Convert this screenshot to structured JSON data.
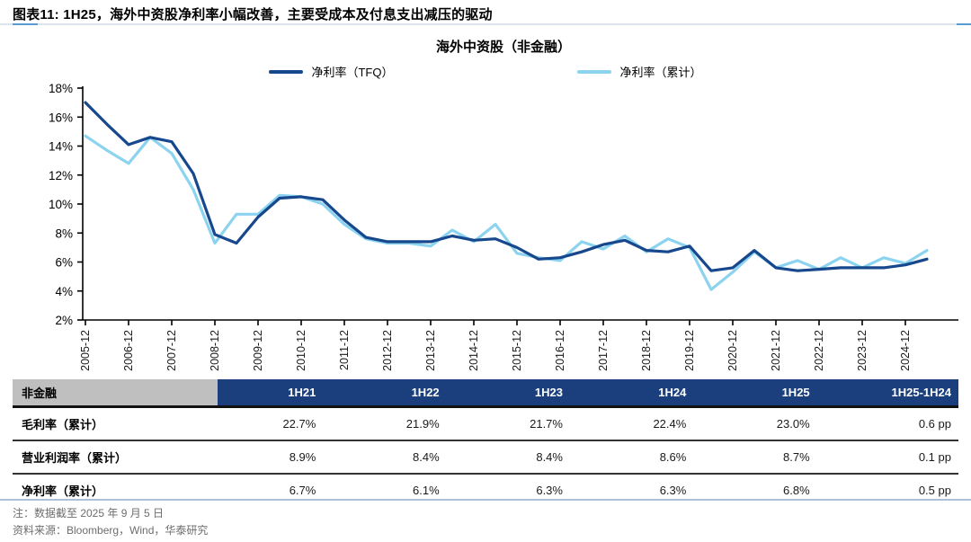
{
  "header": {
    "title": "图表11:  1H25，海外中资股净利率小幅改善，主要受成本及付息支出减压的驱动"
  },
  "colors": {
    "tfq_line": "#17478c",
    "cumulative_line": "#8cd3f0",
    "table_header_bg": "#1b3f7c",
    "table_corner_bg": "#bfbfbf",
    "divider_blue": "#aebfd9",
    "accent_blue": "#5b9bd5"
  },
  "chart_data": {
    "type": "line",
    "title": "海外中资股（非金融）",
    "xlabel": "",
    "ylabel": "",
    "ylim": [
      2,
      18
    ],
    "ytick_step": 2,
    "ytick_suffix": "%",
    "grid": false,
    "legend_position": "top",
    "x": [
      "2005-12",
      "2006-06",
      "2006-12",
      "2007-06",
      "2007-12",
      "2008-06",
      "2008-12",
      "2009-06",
      "2009-12",
      "2010-06",
      "2010-12",
      "2011-06",
      "2011-12",
      "2012-06",
      "2012-12",
      "2013-06",
      "2013-12",
      "2014-06",
      "2014-12",
      "2015-06",
      "2015-12",
      "2016-06",
      "2016-12",
      "2017-06",
      "2017-12",
      "2018-06",
      "2018-12",
      "2019-06",
      "2019-12",
      "2020-06",
      "2020-12",
      "2021-06",
      "2021-12",
      "2022-06",
      "2022-12",
      "2023-06",
      "2023-12",
      "2024-06",
      "2024-12",
      "2025-06"
    ],
    "xtick_labels": [
      "2005-12",
      "2006-12",
      "2007-12",
      "2008-12",
      "2009-12",
      "2010-12",
      "2011-12",
      "2012-12",
      "2013-12",
      "2014-12",
      "2015-12",
      "2016-12",
      "2017-12",
      "2018-12",
      "2019-12",
      "2020-12",
      "2021-12",
      "2022-12",
      "2023-12",
      "2024-12"
    ],
    "series": [
      {
        "name": "净利率（TFQ）",
        "color": "#17478c",
        "values": [
          17.0,
          15.5,
          14.1,
          14.6,
          14.3,
          12.1,
          7.9,
          7.3,
          9.1,
          10.4,
          10.5,
          10.3,
          8.9,
          7.7,
          7.4,
          7.4,
          7.4,
          7.8,
          7.5,
          7.6,
          7.0,
          6.2,
          6.3,
          6.7,
          7.2,
          7.5,
          6.8,
          6.7,
          7.1,
          5.4,
          5.6,
          6.8,
          5.6,
          5.4,
          5.5,
          5.6,
          5.6,
          5.6,
          5.8,
          6.2
        ]
      },
      {
        "name": "净利率（累计）",
        "color": "#8cd3f0",
        "values": [
          14.7,
          13.7,
          12.8,
          14.6,
          13.5,
          11.0,
          7.3,
          9.3,
          9.3,
          10.6,
          10.5,
          10.0,
          8.6,
          7.6,
          7.3,
          7.3,
          7.1,
          8.2,
          7.4,
          8.6,
          6.6,
          6.3,
          6.1,
          7.4,
          6.9,
          7.8,
          6.7,
          7.6,
          7.0,
          4.1,
          5.3,
          6.7,
          5.6,
          6.1,
          5.5,
          6.3,
          5.6,
          6.3,
          5.9,
          6.8
        ]
      }
    ]
  },
  "table": {
    "corner_label": "非金融",
    "columns": [
      "1H21",
      "1H22",
      "1H23",
      "1H24",
      "1H25",
      "1H25-1H24"
    ],
    "rows": [
      {
        "label": "毛利率（累计）",
        "values": [
          "22.7%",
          "21.9%",
          "21.7%",
          "22.4%",
          "23.0%",
          "0.6 pp"
        ]
      },
      {
        "label": "营业利润率（累计）",
        "values": [
          "8.9%",
          "8.4%",
          "8.4%",
          "8.6%",
          "8.7%",
          "0.1 pp"
        ]
      },
      {
        "label": "净利率（累计）",
        "values": [
          "6.7%",
          "6.1%",
          "6.3%",
          "6.3%",
          "6.8%",
          "0.5 pp"
        ]
      }
    ]
  },
  "footnotes": [
    "注：数据截至 2025 年 9 月 5 日",
    "资料来源：Bloomberg，Wind，华泰研究"
  ]
}
